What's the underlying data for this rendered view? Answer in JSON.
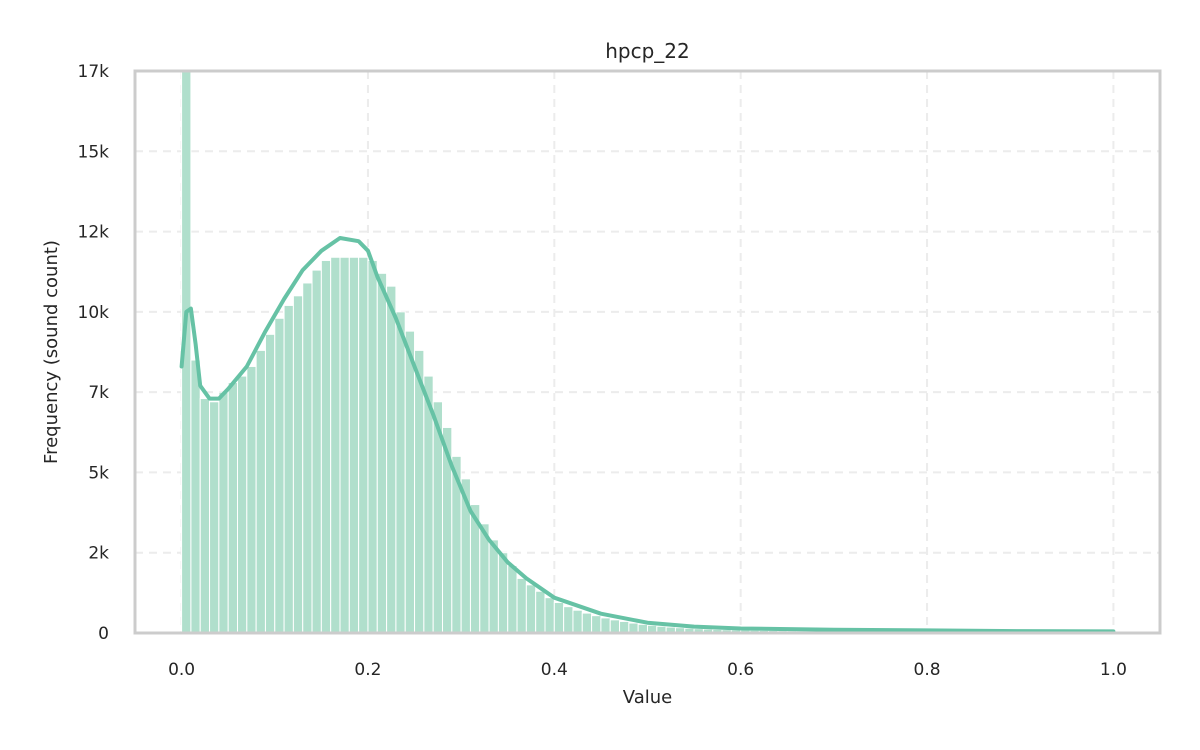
{
  "colors": {
    "bar": "#b0dfcc",
    "line": "#66c2a5",
    "frame": "#cccccc",
    "grid": "#ececec",
    "text": "#262626"
  },
  "chart_data": {
    "type": "bar",
    "title": "hpcp_22",
    "xlabel": "Value",
    "ylabel": "Frequency (sound count)",
    "xlim": [
      -0.05,
      1.05
    ],
    "ylim": [
      0,
      17500
    ],
    "xticks": [
      0.0,
      0.2,
      0.4,
      0.6,
      0.8,
      1.0
    ],
    "xtick_labels": [
      "0.0",
      "0.2",
      "0.4",
      "0.6",
      "0.8",
      "1.0"
    ],
    "yticks": [
      0,
      2500,
      5000,
      7500,
      10000,
      12500,
      15000,
      17500
    ],
    "ytick_labels": [
      "0",
      "2k",
      "5k",
      "7k",
      "10k",
      "12k",
      "15k",
      "17k"
    ],
    "grid": true,
    "bin_width": 0.01,
    "bin_start": 0.0,
    "values": [
      17500,
      8500,
      7300,
      7200,
      7500,
      7800,
      8000,
      8300,
      8800,
      9300,
      9800,
      10200,
      10500,
      10900,
      11300,
      11600,
      11700,
      11700,
      11700,
      11700,
      11600,
      11200,
      10800,
      10000,
      9400,
      8800,
      8000,
      7200,
      6400,
      5500,
      4800,
      4000,
      3400,
      2900,
      2500,
      2100,
      1700,
      1500,
      1300,
      1100,
      950,
      820,
      710,
      620,
      540,
      470,
      410,
      360,
      310,
      270,
      240,
      210,
      185,
      165,
      148,
      135,
      122,
      112,
      104,
      97,
      90,
      85,
      80,
      76,
      72,
      68,
      65,
      62,
      59,
      57,
      55,
      53,
      51,
      49,
      47,
      45,
      44,
      42,
      41,
      40,
      39,
      38,
      37,
      36,
      35,
      34,
      33,
      32,
      31,
      30,
      29,
      28,
      27,
      26,
      25,
      24,
      23,
      22,
      21,
      20
    ],
    "kde": {
      "x": [
        0.0,
        0.005,
        0.01,
        0.015,
        0.02,
        0.03,
        0.04,
        0.05,
        0.07,
        0.09,
        0.11,
        0.13,
        0.15,
        0.17,
        0.19,
        0.2,
        0.21,
        0.23,
        0.25,
        0.27,
        0.29,
        0.31,
        0.33,
        0.35,
        0.37,
        0.4,
        0.45,
        0.5,
        0.55,
        0.6,
        0.7,
        0.8,
        0.9,
        1.0
      ],
      "y": [
        8300,
        10000,
        10100,
        9000,
        7700,
        7300,
        7300,
        7600,
        8300,
        9400,
        10400,
        11300,
        11900,
        12300,
        12200,
        11900,
        11100,
        9800,
        8300,
        6800,
        5200,
        3800,
        2900,
        2200,
        1700,
        1100,
        600,
        320,
        200,
        140,
        100,
        80,
        60,
        50
      ]
    }
  }
}
